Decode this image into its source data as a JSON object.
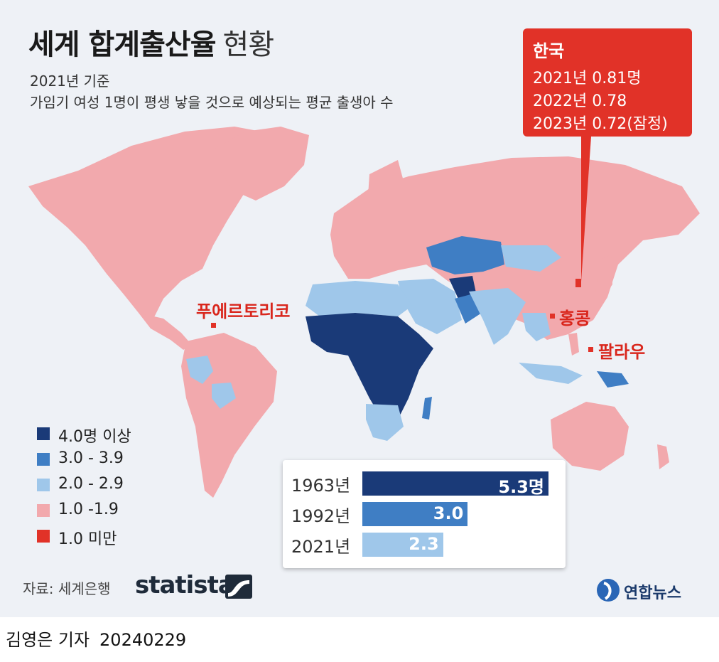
{
  "title": {
    "bold": "세계 합계출산율",
    "light": "현황"
  },
  "subtitle": {
    "line1": "2021년 기준",
    "line2": "가임기 여성 1명이 평생 낳을 것으로 예상되는 평균 출생아 수"
  },
  "korea_callout": {
    "name": "한국",
    "lines": [
      "2021년 0.81명",
      "2022년 0.78",
      "2023년 0.72(잠정)"
    ]
  },
  "map_labels": {
    "puerto_rico": "푸에르토리코",
    "hong_kong": "홍콩",
    "palau": "팔라우"
  },
  "legend": [
    {
      "label": "4.0명 이상",
      "color": "#1a3a78"
    },
    {
      "label": "3.0 - 3.9",
      "color": "#3f7ec4"
    },
    {
      "label": "2.0 - 2.9",
      "color": "#9fc7ea"
    },
    {
      "label": "1.0 -1.9",
      "color": "#f2a9ad"
    },
    {
      "label": "1.0 미만",
      "color": "#e13228"
    }
  ],
  "chart_data": {
    "type": "bar",
    "categories": [
      "1963년",
      "1992년",
      "2021년"
    ],
    "values": [
      5.3,
      3.0,
      2.3
    ],
    "value_labels": [
      "5.3명",
      "3.0",
      "2.3"
    ],
    "colors": [
      "#1a3a78",
      "#3f7ec4",
      "#9fc7ea"
    ]
  },
  "source": "자료: 세계은행",
  "brand": "statista",
  "publisher": "연합뉴스",
  "footer": {
    "reporter": "김영은 기자",
    "date": "20240229"
  }
}
